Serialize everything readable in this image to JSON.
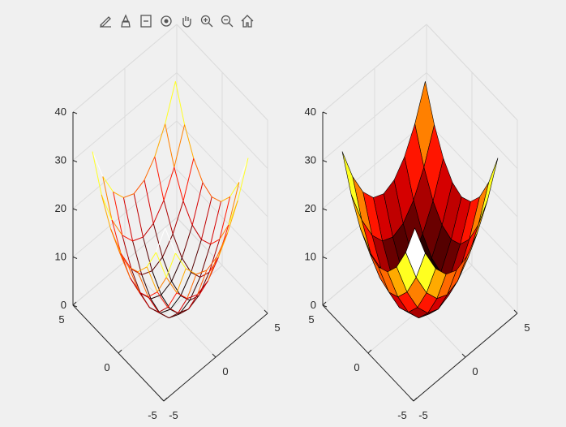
{
  "toolbar": {
    "buttons": [
      {
        "name": "edit-plot-icon"
      },
      {
        "name": "brush-icon"
      },
      {
        "name": "data-tips-icon"
      },
      {
        "name": "rotate-3d-icon"
      },
      {
        "name": "pan-icon"
      },
      {
        "name": "zoom-in-icon"
      },
      {
        "name": "zoom-out-icon"
      },
      {
        "name": "home-icon"
      }
    ]
  },
  "colors": {
    "background": "#f0f0f0",
    "axes_line": "#262626",
    "grid": "#dcdcdc",
    "edge": "#000000"
  },
  "chart_data": [
    {
      "type": "mesh",
      "colormap": "hot",
      "function": "z = x^2 + y^2",
      "x": [
        -4,
        -3,
        -2,
        -1,
        0,
        1,
        2,
        3,
        4
      ],
      "y": [
        -4,
        -3,
        -2,
        -1,
        0,
        1,
        2,
        3,
        4
      ],
      "xlim": [
        -5,
        5
      ],
      "ylim": [
        -5,
        5
      ],
      "zlim": [
        0,
        40
      ],
      "xticks": [
        "-5",
        "0",
        "5"
      ],
      "yticks": [
        "-5",
        "0",
        "5"
      ],
      "zticks": [
        "0",
        "10",
        "20",
        "30",
        "40"
      ],
      "grid": true
    },
    {
      "type": "surface",
      "colormap": "hot",
      "function": "z = x^2 + y^2",
      "x": [
        -4,
        -3,
        -2,
        -1,
        0,
        1,
        2,
        3,
        4
      ],
      "y": [
        -4,
        -3,
        -2,
        -1,
        0,
        1,
        2,
        3,
        4
      ],
      "xlim": [
        -5,
        5
      ],
      "ylim": [
        -5,
        5
      ],
      "zlim": [
        0,
        40
      ],
      "xticks": [
        "-5",
        "0",
        "5"
      ],
      "yticks": [
        "-5",
        "0",
        "5"
      ],
      "zticks": [
        "0",
        "10",
        "20",
        "30",
        "40"
      ],
      "grid": true
    }
  ]
}
